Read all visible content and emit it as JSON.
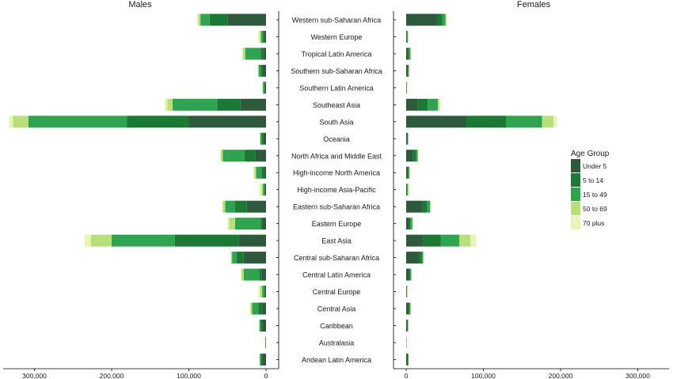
{
  "chart_data": {
    "type": "bar",
    "panels": [
      {
        "title": "Males",
        "orientation": "reversed"
      },
      {
        "title": "Females",
        "orientation": "normal"
      }
    ],
    "xlim": [
      0,
      330000
    ],
    "x_ticks": [
      {
        "value": 0,
        "label": "0"
      },
      {
        "value": 100000,
        "label": "100,000"
      },
      {
        "value": 200000,
        "label": "200,000"
      },
      {
        "value": 300000,
        "label": "300,000"
      }
    ],
    "legend": {
      "title": "Age Group",
      "position": "right",
      "entries": [
        "Under 5",
        "5 to 14",
        "15 to 49",
        "50 to 69",
        "70 plus"
      ]
    },
    "colors": [
      "#2e5a3c",
      "#1a7a34",
      "#2ea44f",
      "#b8e07a",
      "#e7f5b4"
    ],
    "categories": [
      "Western sub-Saharan Africa",
      "Western Europe",
      "Tropical Latin America",
      "Southern sub-Saharan Africa",
      "Southern Latin America",
      "Southeast Asia",
      "South Asia",
      "Oceania",
      "North Africa and Middle East",
      "High-income North America",
      "High-income Asia-Pacific",
      "Eastern sub-Saharan Africa",
      "Eastern Europe",
      "East Asia",
      "Central sub-Saharan Africa",
      "Central Latin America",
      "Central Europe",
      "Central Asia",
      "Caribbean",
      "Australasia",
      "Andean Latin America"
    ],
    "males": [
      [
        50000,
        23000,
        12000,
        3000,
        1000
      ],
      [
        2000,
        2000,
        2500,
        2000,
        2000
      ],
      [
        3000,
        4000,
        20000,
        3000,
        1000
      ],
      [
        5000,
        2000,
        2500,
        1000,
        500
      ],
      [
        1000,
        1000,
        2000,
        500,
        300
      ],
      [
        33000,
        30000,
        58000,
        7000,
        3500
      ],
      [
        100000,
        80000,
        128000,
        20000,
        5000
      ],
      [
        3500,
        2000,
        2000,
        500,
        300
      ],
      [
        14000,
        14000,
        28000,
        2500,
        1000
      ],
      [
        3000,
        3000,
        7000,
        2000,
        1500
      ],
      [
        1000,
        1000,
        2000,
        2000,
        3000
      ],
      [
        25000,
        15000,
        13000,
        3000,
        1000
      ],
      [
        5000,
        2000,
        33000,
        8000,
        2000
      ],
      [
        35000,
        83000,
        82000,
        27000,
        8000
      ],
      [
        29000,
        9000,
        6000,
        1500,
        500
      ],
      [
        6000,
        3000,
        20000,
        3000,
        1000
      ],
      [
        1000,
        1000,
        3000,
        3000,
        2000
      ],
      [
        5000,
        5000,
        8000,
        2000,
        1000
      ],
      [
        5000,
        2000,
        1500,
        500,
        300
      ],
      [
        300,
        300,
        400,
        300,
        300
      ],
      [
        5000,
        2000,
        1000,
        500,
        300
      ]
    ],
    "females": [
      [
        40000,
        7000,
        4000,
        1000,
        500
      ],
      [
        500,
        500,
        1000,
        500,
        500
      ],
      [
        2000,
        1500,
        2000,
        500,
        500
      ],
      [
        2000,
        500,
        1000,
        300,
        300
      ],
      [
        300,
        300,
        500,
        300,
        200
      ],
      [
        15000,
        13000,
        13000,
        2000,
        1000
      ],
      [
        78000,
        52000,
        46000,
        15000,
        4000
      ],
      [
        1500,
        500,
        500,
        300,
        200
      ],
      [
        9000,
        4000,
        2000,
        500,
        500
      ],
      [
        2000,
        1000,
        1000,
        500,
        500
      ],
      [
        500,
        500,
        1000,
        1000,
        1500
      ],
      [
        20000,
        7000,
        4000,
        500,
        500
      ],
      [
        4000,
        1500,
        2500,
        500,
        500
      ],
      [
        21000,
        24000,
        24000,
        14000,
        8000
      ],
      [
        17000,
        3000,
        2000,
        300,
        200
      ],
      [
        4000,
        1500,
        1000,
        500,
        300
      ],
      [
        500,
        300,
        500,
        300,
        300
      ],
      [
        3000,
        1500,
        1000,
        500,
        300
      ],
      [
        1500,
        500,
        500,
        300,
        200
      ],
      [
        200,
        200,
        200,
        200,
        200
      ],
      [
        2000,
        500,
        500,
        300,
        200
      ]
    ]
  }
}
